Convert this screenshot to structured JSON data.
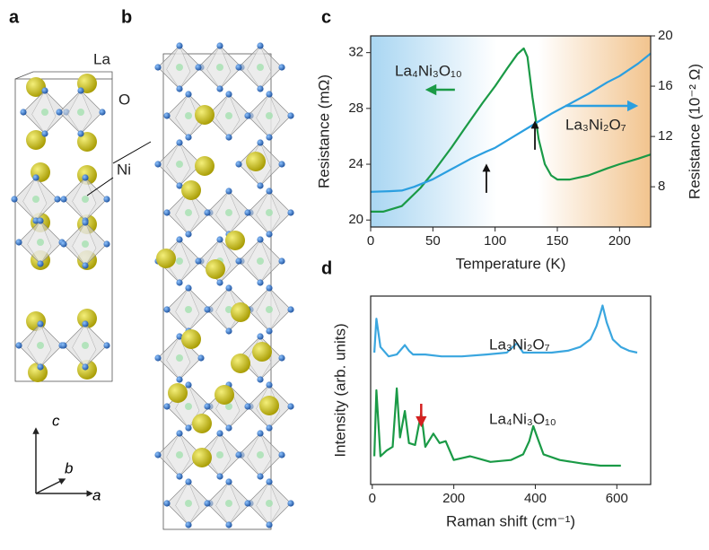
{
  "panel_labels": [
    "a",
    "b",
    "c",
    "d"
  ],
  "structure": {
    "atom_labels": [
      "La",
      "O",
      "Ni"
    ],
    "axes": [
      "c",
      "b",
      "a"
    ]
  },
  "chart_data": [
    {
      "type": "line",
      "xlabel": "Temperature (K)",
      "ylabel": "Resistance (mΩ)",
      "y2label": "Resistance (10⁻² Ω)",
      "xlim": [
        0,
        225
      ],
      "xticks": [
        0,
        50,
        100,
        150,
        200
      ],
      "ylim": [
        19.5,
        33.2
      ],
      "yticks": [
        20,
        24,
        28,
        32
      ],
      "y2lim": [
        4.8,
        20
      ],
      "y2ticks": [
        8,
        12,
        16,
        20
      ],
      "arrows_x": [
        93,
        132
      ],
      "series": [
        {
          "name": "La₄Ni₃O₁₀",
          "color": "#1a9a46",
          "axis": "y",
          "x": [
            0,
            10,
            25,
            40,
            50,
            65,
            75,
            90,
            100,
            110,
            118,
            123,
            126,
            130,
            135,
            140,
            145,
            150,
            160,
            175,
            190,
            200,
            215,
            225
          ],
          "values": [
            20.6,
            20.6,
            21.0,
            22.3,
            23.4,
            25.2,
            26.5,
            28.4,
            29.6,
            30.9,
            31.9,
            32.3,
            31.7,
            28.8,
            25.8,
            24.0,
            23.2,
            22.9,
            22.9,
            23.2,
            23.7,
            24.0,
            24.4,
            24.7
          ]
        },
        {
          "name": "La₃Ni₂O₇",
          "color": "#2b9fe0",
          "axis": "y2",
          "x": [
            0,
            15,
            25,
            35,
            50,
            65,
            80,
            93,
            100,
            115,
            130,
            145,
            160,
            175,
            190,
            200,
            215,
            225
          ],
          "values": [
            7.6,
            7.65,
            7.7,
            8.0,
            8.6,
            9.4,
            10.2,
            10.8,
            11.1,
            12.0,
            12.9,
            13.8,
            14.6,
            15.4,
            16.3,
            16.8,
            17.8,
            18.6
          ]
        }
      ]
    },
    {
      "type": "line",
      "xlabel": "Raman shift (cm⁻¹)",
      "ylabel": "Intensity (arb. units)",
      "xlim": [
        -4,
        683
      ],
      "xticks": [
        0,
        200,
        400,
        600
      ],
      "ylim": [
        0,
        10
      ],
      "arrows_x": [
        120
      ],
      "series": [
        {
          "name": "La₃Ni₂O₇",
          "color": "#3aa6df",
          "x": [
            5,
            10,
            20,
            40,
            60,
            80,
            90,
            100,
            130,
            170,
            220,
            280,
            330,
            355,
            370,
            400,
            440,
            480,
            510,
            535,
            550,
            560,
            565,
            575,
            590,
            610,
            630,
            650
          ],
          "values": [
            7.0,
            8.8,
            7.3,
            6.8,
            6.9,
            7.4,
            7.1,
            6.9,
            6.9,
            6.8,
            6.8,
            6.9,
            7.0,
            7.5,
            7.0,
            7.0,
            7.0,
            7.1,
            7.3,
            7.7,
            8.4,
            9.1,
            9.5,
            8.6,
            7.7,
            7.3,
            7.1,
            7.0
          ]
        },
        {
          "name": "La₄Ni₃O₁₀",
          "color": "#1a9a46",
          "x": [
            5,
            10,
            20,
            35,
            50,
            60,
            68,
            80,
            90,
            105,
            120,
            130,
            150,
            165,
            180,
            200,
            240,
            290,
            340,
            370,
            385,
            395,
            405,
            420,
            460,
            520,
            560,
            610
          ],
          "values": [
            1.5,
            5.0,
            1.5,
            1.8,
            2.0,
            5.1,
            2.5,
            3.9,
            2.2,
            2.1,
            3.8,
            2.0,
            2.7,
            2.2,
            2.3,
            1.3,
            1.5,
            1.2,
            1.3,
            1.6,
            2.3,
            3.1,
            2.5,
            1.6,
            1.3,
            1.1,
            1.0,
            1.0
          ]
        }
      ]
    }
  ]
}
